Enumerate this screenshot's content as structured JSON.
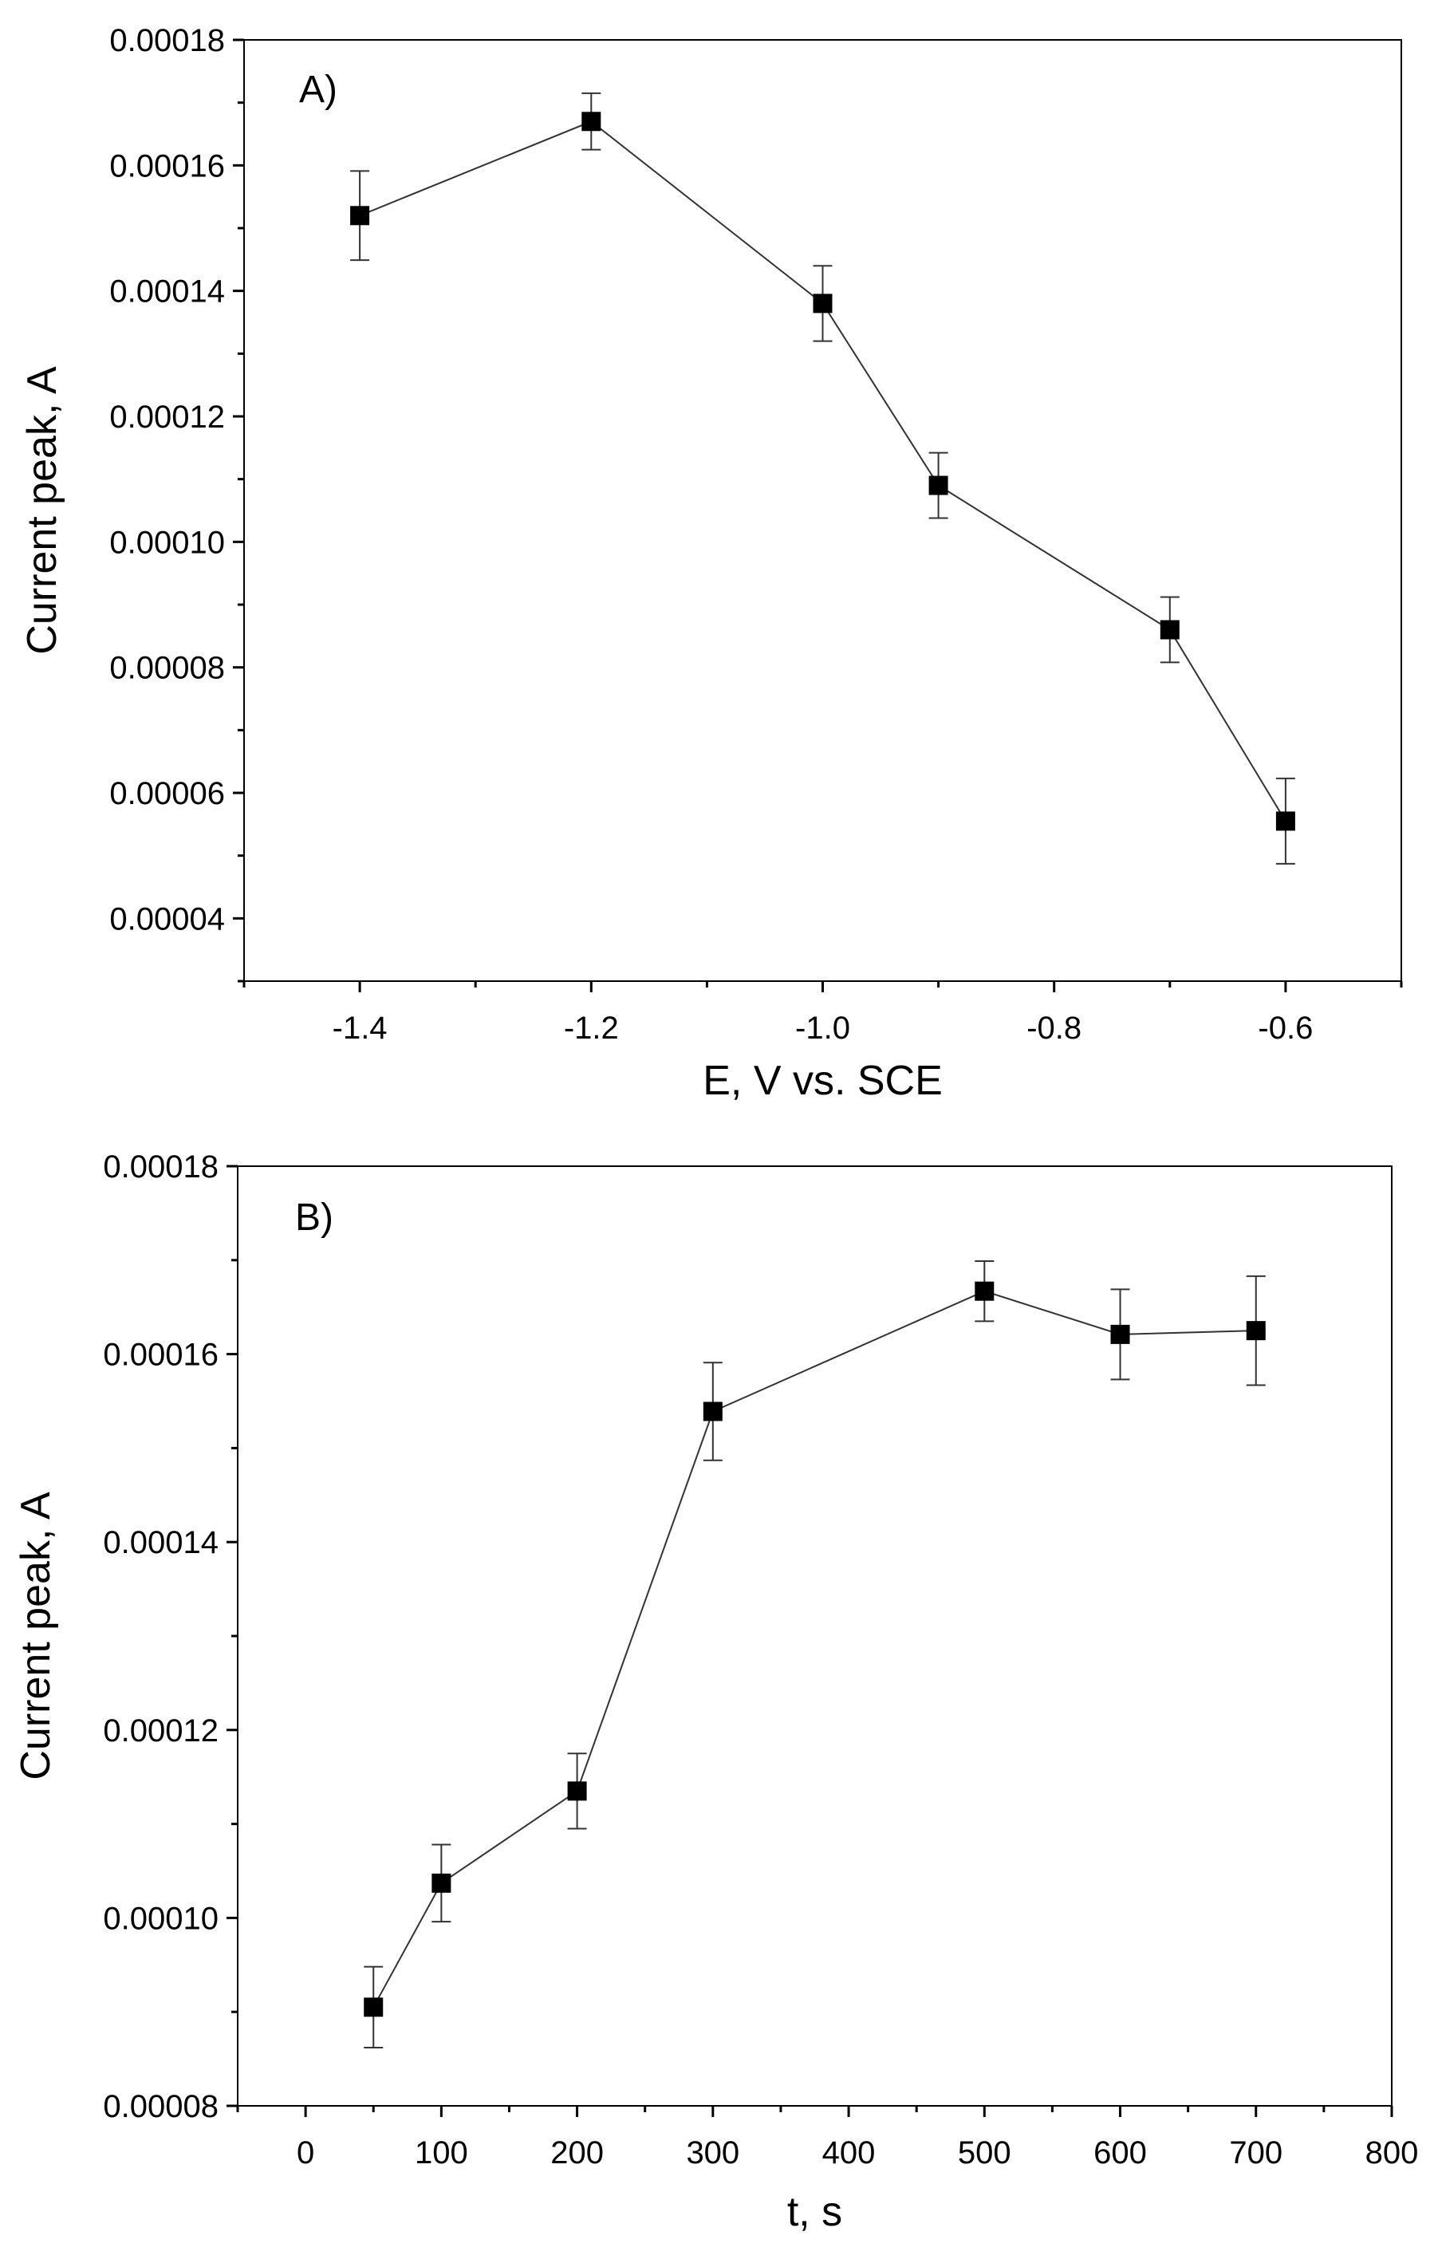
{
  "chart_data": [
    {
      "type": "scatter",
      "panel_label": "A)",
      "xlabel": "E, V vs. SCE",
      "ylabel": "Current peak, A",
      "xlim": [
        -1.5,
        -0.5
      ],
      "ylim": [
        3e-05,
        0.00018
      ],
      "xticks": [
        -1.4,
        -1.2,
        -1.0,
        -0.8,
        -0.6
      ],
      "xtick_labels": [
        "-1.4",
        "-1.2",
        "-1.0",
        "-0.8",
        "-0.6"
      ],
      "yticks": [
        4e-05,
        6e-05,
        8e-05,
        0.0001,
        0.00012,
        0.00014,
        0.00016,
        0.00018
      ],
      "ytick_labels": [
        "0.00004",
        "0.00006",
        "0.00008",
        "0.00010",
        "0.00012",
        "0.00014",
        "0.00016",
        "0.00018"
      ],
      "grid": false,
      "series": [
        {
          "name": "Current peak",
          "x": [
            -1.4,
            -1.2,
            -1.0,
            -0.9,
            -0.7,
            -0.6
          ],
          "y": [
            0.000152,
            0.000167,
            0.000138,
            0.000109,
            8.6e-05,
            5.55e-05
          ],
          "yerr": [
            7.1e-06,
            4.5e-06,
            6e-06,
            5.2e-06,
            5.2e-06,
            6.8e-06
          ]
        }
      ]
    },
    {
      "type": "scatter",
      "panel_label": "B)",
      "xlabel": "t, s",
      "ylabel": "Current peak, A",
      "xlim": [
        -50,
        800
      ],
      "ylim": [
        8e-05,
        0.00018
      ],
      "xticks": [
        0,
        100,
        200,
        300,
        400,
        500,
        600,
        700,
        800
      ],
      "xtick_labels": [
        "0",
        "100",
        "200",
        "300",
        "400",
        "500",
        "600",
        "700",
        "800"
      ],
      "yticks": [
        8e-05,
        0.0001,
        0.00012,
        0.00014,
        0.00016,
        0.00018
      ],
      "ytick_labels": [
        "0.00008",
        "0.00010",
        "0.00012",
        "0.00014",
        "0.00016",
        "0.00018"
      ],
      "grid": false,
      "series": [
        {
          "name": "Current peak",
          "x": [
            50,
            100,
            200,
            300,
            500,
            600,
            700
          ],
          "y": [
            9.05e-05,
            0.0001037,
            0.0001135,
            0.0001539,
            0.0001667,
            0.0001621,
            0.0001625
          ],
          "yerr": [
            4.3e-06,
            4.1e-06,
            4e-06,
            5.2e-06,
            3.2e-06,
            4.8e-06,
            5.8e-06
          ]
        }
      ]
    }
  ]
}
